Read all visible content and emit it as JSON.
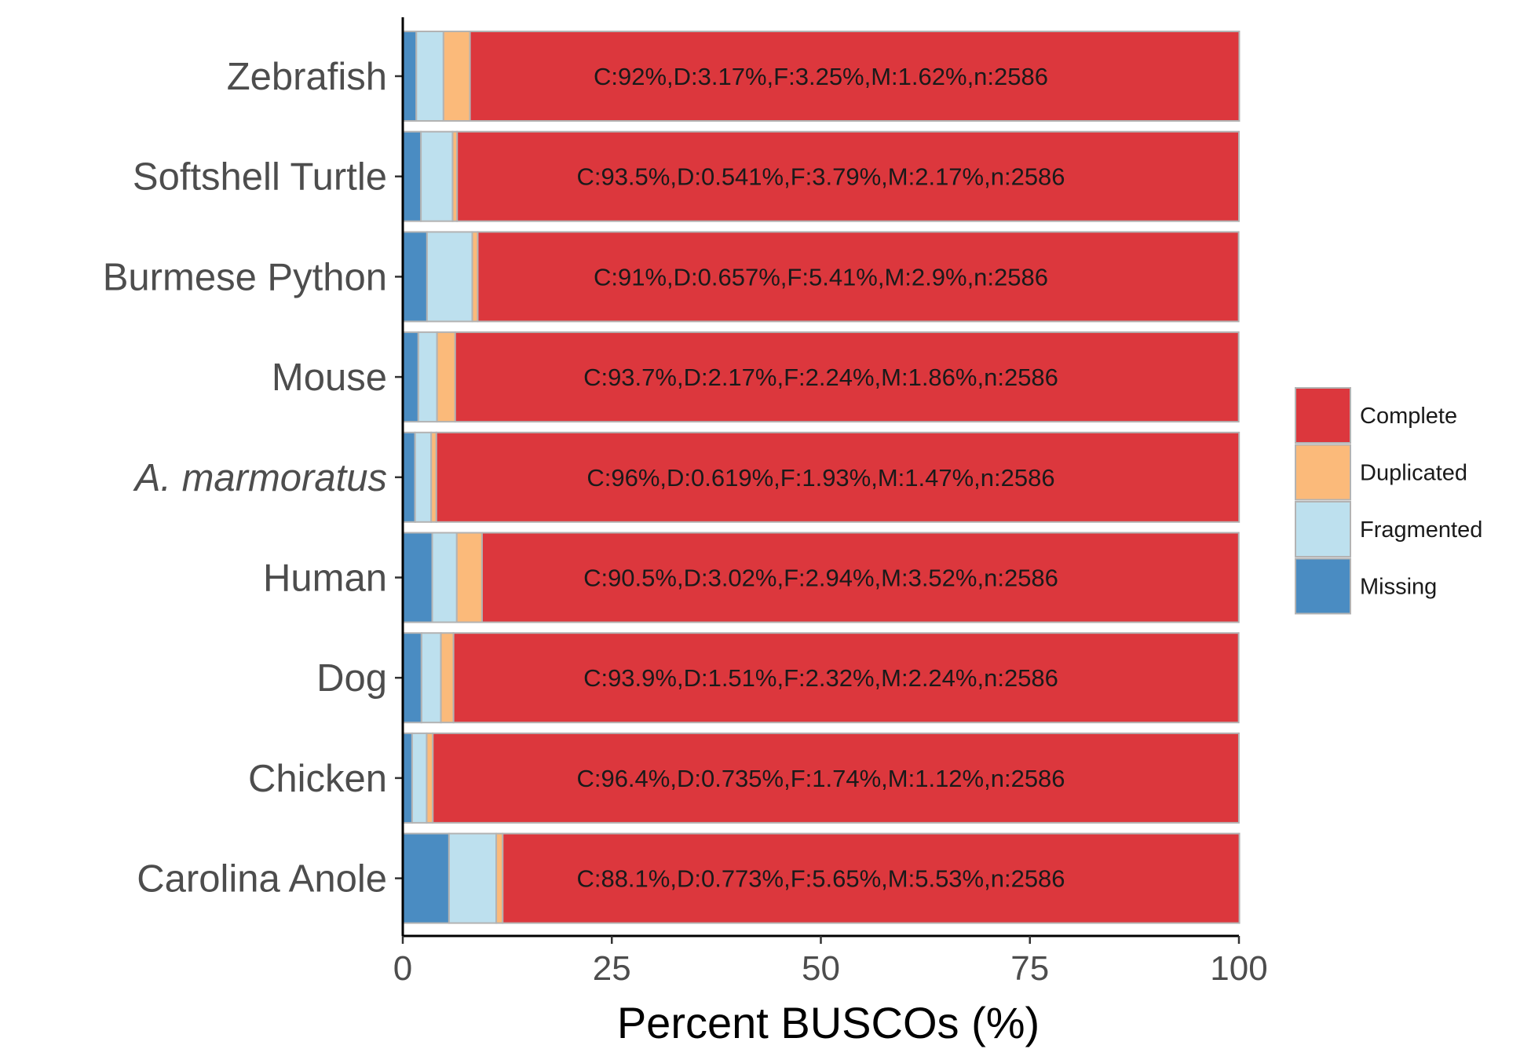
{
  "chart_data": {
    "type": "bar",
    "orientation": "horizontal",
    "stacked": true,
    "categories": [
      "Zebrafish",
      "Softshell Turtle",
      "Burmese Python",
      "Mouse",
      "A. marmoratus",
      "Human",
      "Dog",
      "Chicken",
      "Carolina Anole"
    ],
    "italic_categories": [
      "A. marmoratus"
    ],
    "series": [
      {
        "name": "Missing",
        "color": "#4a8cc2",
        "values": [
          1.62,
          2.17,
          2.9,
          1.86,
          1.47,
          3.52,
          2.24,
          1.12,
          5.53
        ]
      },
      {
        "name": "Fragmented",
        "color": "#bde0ee",
        "values": [
          3.25,
          3.79,
          5.41,
          2.24,
          1.93,
          2.94,
          2.32,
          1.74,
          5.65
        ]
      },
      {
        "name": "Duplicated",
        "color": "#fbba7a",
        "values": [
          3.17,
          0.541,
          0.657,
          2.17,
          0.619,
          3.02,
          1.51,
          0.735,
          0.773
        ]
      },
      {
        "name": "Complete",
        "color": "#dc373d",
        "values": [
          92,
          93.5,
          91,
          93.7,
          96,
          90.5,
          93.9,
          96.4,
          88.1
        ]
      }
    ],
    "bar_labels": [
      "C:92%,D:3.17%,F:3.25%,M:1.62%,n:2586",
      "C:93.5%,D:0.541%,F:3.79%,M:2.17%,n:2586",
      "C:91%,D:0.657%,F:5.41%,M:2.9%,n:2586",
      "C:93.7%,D:2.17%,F:2.24%,M:1.86%,n:2586",
      "C:96%,D:0.619%,F:1.93%,M:1.47%,n:2586",
      "C:90.5%,D:3.02%,F:2.94%,M:3.52%,n:2586",
      "C:93.9%,D:1.51%,F:2.32%,M:2.24%,n:2586",
      "C:96.4%,D:0.735%,F:1.74%,M:1.12%,n:2586",
      "C:88.1%,D:0.773%,F:5.65%,M:5.53%,n:2586"
    ],
    "xlabel": "Percent BUSCOs (%)",
    "ylabel": "",
    "xlim": [
      0,
      100
    ],
    "xticks": [
      "0",
      "25",
      "50",
      "75",
      "100"
    ],
    "legend": {
      "position": "right",
      "entries": [
        "Complete",
        "Duplicated",
        "Fragmented",
        "Missing"
      ]
    },
    "grid": false
  }
}
